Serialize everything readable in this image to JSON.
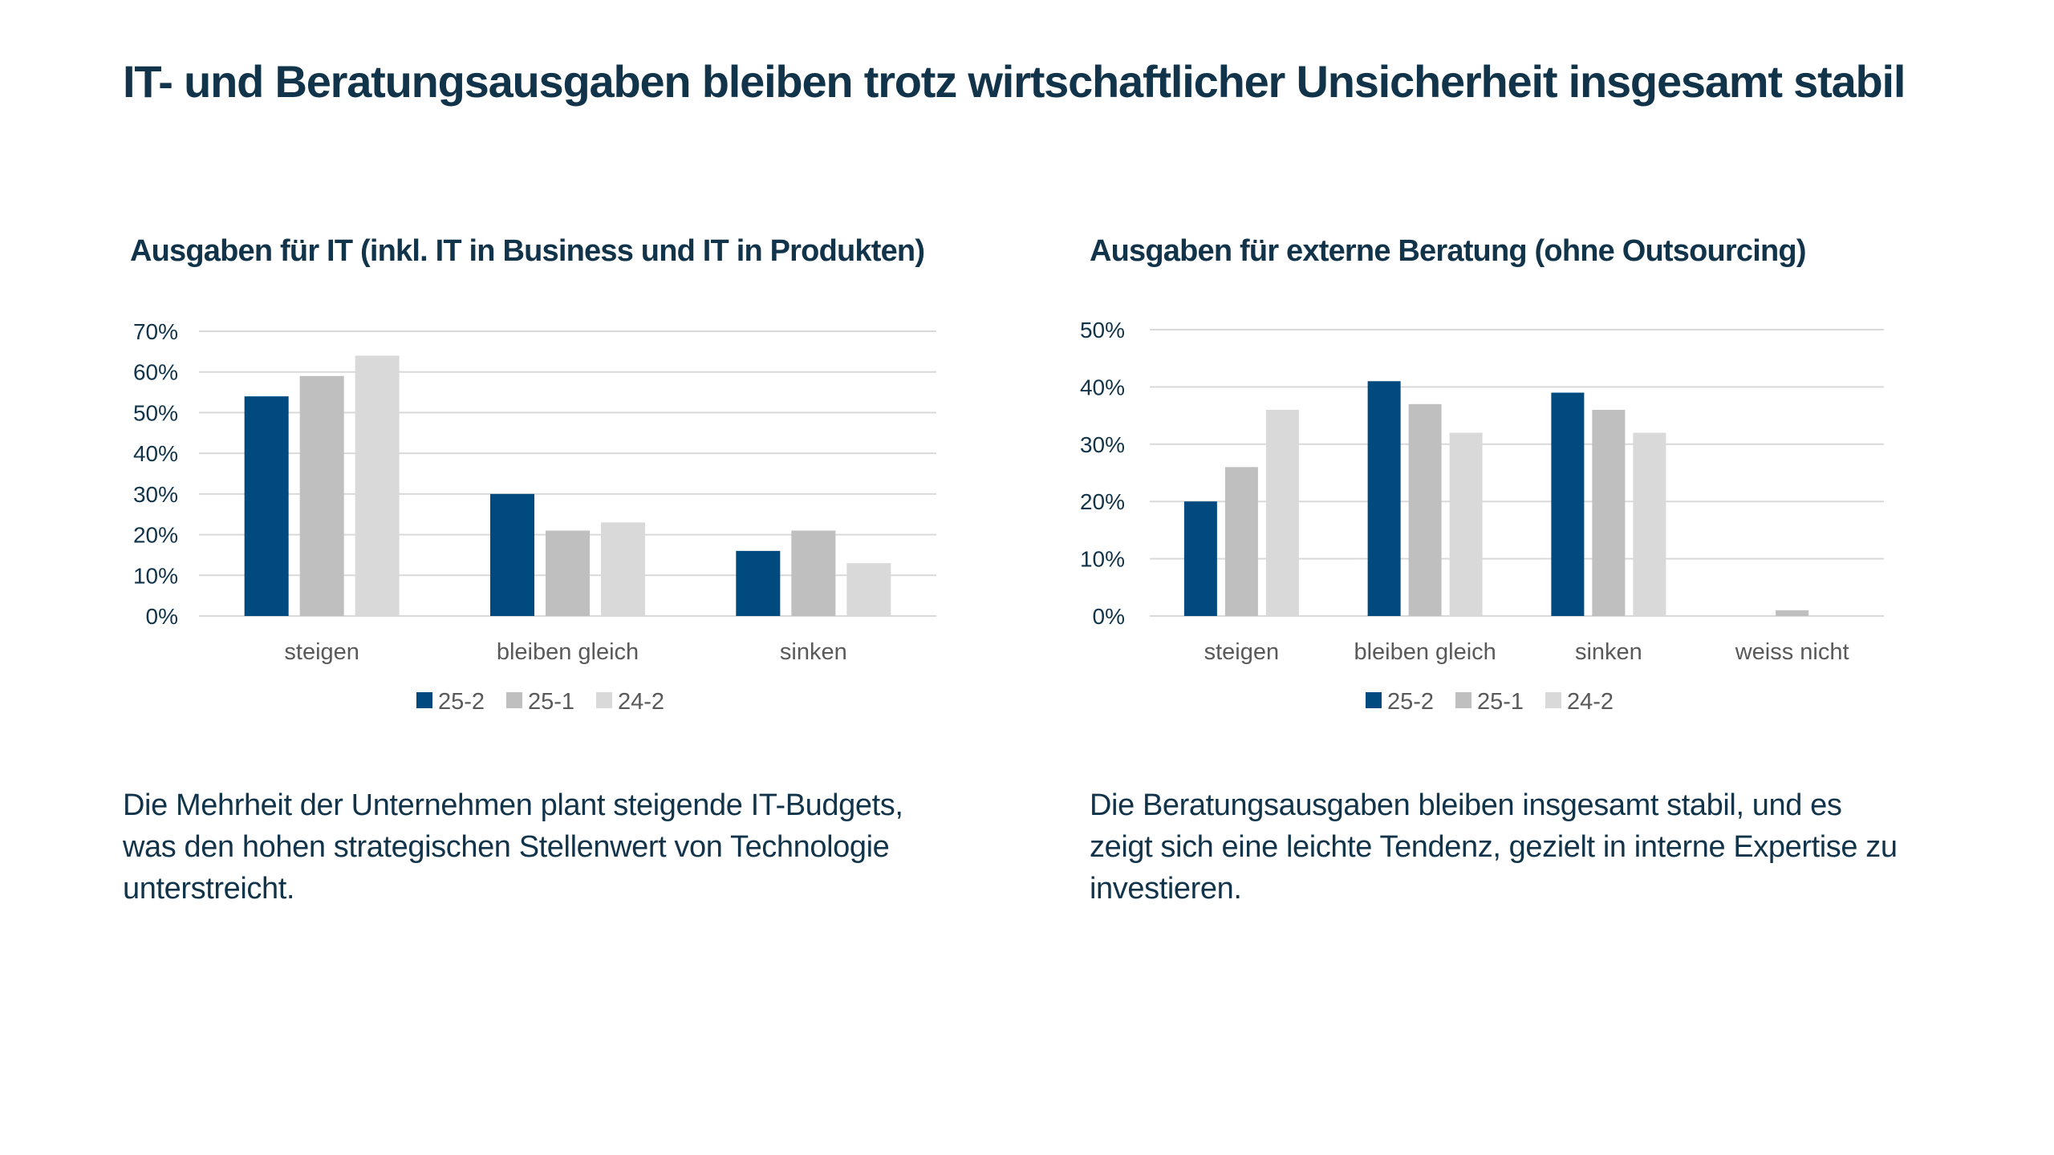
{
  "page": {
    "title": "IT- und Beratungsausgaben bleiben trotz wirtschaftlicher Unsicherheit insgesamt stabil",
    "left_text": "Die Mehrheit der Unternehmen plant steigende IT-Budgets, was den hohen strategischen Stellenwert von Technologie unterstreicht.",
    "right_text": "Die Beratungsausgaben bleiben insgesamt stabil, und es zeigt sich eine leichte Tendenz, gezielt in interne Expertise zu investieren."
  },
  "colors": {
    "text": "#12344A",
    "series": [
      "#004A80",
      "#BFBFBF",
      "#D9D9D9"
    ],
    "grid": "#D9D9D9",
    "tick": "#595959"
  },
  "chart_data": [
    {
      "type": "bar",
      "title": "Ausgaben für IT (inkl. IT in Business und IT in Produkten)",
      "xlabel": "",
      "ylabel": "",
      "categories": [
        "steigen",
        "bleiben gleich",
        "sinken"
      ],
      "series": [
        {
          "name": "25-2",
          "values": [
            54,
            30,
            16
          ]
        },
        {
          "name": "25-1",
          "values": [
            59,
            21,
            21
          ]
        },
        {
          "name": "24-2",
          "values": [
            64,
            23,
            13
          ]
        }
      ],
      "ylim": [
        0,
        70
      ],
      "yticks": [
        "0%",
        "10%",
        "20%",
        "30%",
        "40%",
        "50%",
        "60%",
        "70%"
      ],
      "grid": true,
      "legend": "bottom"
    },
    {
      "type": "bar",
      "title": "Ausgaben für externe Beratung (ohne Outsourcing)",
      "xlabel": "",
      "ylabel": "",
      "categories": [
        "steigen",
        "bleiben gleich",
        "sinken",
        "weiss nicht"
      ],
      "series": [
        {
          "name": "25-2",
          "values": [
            20,
            41,
            39,
            0
          ]
        },
        {
          "name": "25-1",
          "values": [
            26,
            37,
            36,
            1
          ]
        },
        {
          "name": "24-2",
          "values": [
            36,
            32,
            32,
            0
          ]
        }
      ],
      "ylim": [
        0,
        50
      ],
      "yticks": [
        "0%",
        "10%",
        "20%",
        "30%",
        "40%",
        "50%"
      ],
      "grid": true,
      "legend": "bottom"
    }
  ]
}
